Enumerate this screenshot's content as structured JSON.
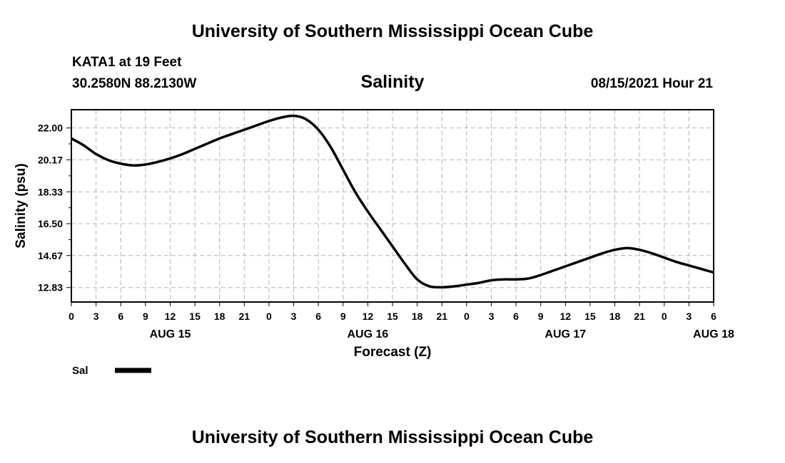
{
  "header": {
    "title": "University of Southern Mississippi Ocean Cube",
    "station": "KATA1 at 19 Feet",
    "coords": "30.2580N  88.2130W",
    "forecast_time": "08/15/2021 Hour 21"
  },
  "footer": {
    "title": "University of Southern Mississippi Ocean Cube"
  },
  "chart_data": {
    "type": "line",
    "title": "Salinity",
    "xlabel": "Forecast (Z)",
    "ylabel": "Salinity (psu)",
    "grid": true,
    "xlim": [
      0,
      78
    ],
    "ylim": [
      12.0,
      23.05
    ],
    "yticks": [
      12.83,
      14.67,
      16.5,
      18.33,
      20.17,
      22.0
    ],
    "ytick_labels": [
      "12.83",
      "14.67",
      "16.50",
      "18.33",
      "20.17",
      "22.00"
    ],
    "xticks": [
      0,
      3,
      6,
      9,
      12,
      15,
      18,
      21,
      24,
      27,
      30,
      33,
      36,
      39,
      42,
      45,
      48,
      51,
      54,
      57,
      60,
      63,
      66,
      69,
      72,
      75,
      78
    ],
    "xtick_labels": [
      "0",
      "3",
      "6",
      "9",
      "12",
      "15",
      "18",
      "21",
      "0",
      "3",
      "6",
      "9",
      "12",
      "15",
      "18",
      "21",
      "0",
      "3",
      "6",
      "9",
      "12",
      "15",
      "18",
      "21",
      "0",
      "3",
      "6"
    ],
    "day_labels": [
      {
        "hour": 12,
        "label": "AUG 15"
      },
      {
        "hour": 36,
        "label": "AUG 16"
      },
      {
        "hour": 60,
        "label": "AUG 17"
      },
      {
        "hour": 78,
        "label": "AUG 18"
      }
    ],
    "legend": [
      {
        "name": "Sal",
        "color": "#000000"
      }
    ],
    "legend_position": "bottom-left",
    "series": [
      {
        "name": "Sal",
        "color": "#000000",
        "x": [
          0,
          1.5,
          3,
          4.5,
          6,
          7.5,
          9,
          10.5,
          12,
          13.5,
          15,
          16.5,
          18,
          19.5,
          21,
          22.5,
          24,
          25.5,
          27,
          28.5,
          30,
          31.5,
          33,
          34.5,
          36,
          37.5,
          39,
          40.5,
          42,
          43.5,
          45,
          46.5,
          48,
          49.5,
          51,
          52.5,
          54,
          55.5,
          57,
          58.5,
          60,
          61.5,
          63,
          64.5,
          66,
          67.5,
          69,
          70.5,
          72,
          73.5,
          75,
          76.5,
          78
        ],
        "values": [
          21.4,
          21.0,
          20.5,
          20.15,
          19.95,
          19.85,
          19.9,
          20.05,
          20.25,
          20.5,
          20.8,
          21.1,
          21.4,
          21.65,
          21.9,
          22.15,
          22.4,
          22.6,
          22.7,
          22.5,
          21.9,
          20.9,
          19.6,
          18.3,
          17.2,
          16.2,
          15.2,
          14.2,
          13.3,
          12.9,
          12.85,
          12.9,
          13.0,
          13.1,
          13.25,
          13.3,
          13.3,
          13.35,
          13.55,
          13.8,
          14.05,
          14.3,
          14.55,
          14.8,
          15.0,
          15.1,
          15.0,
          14.8,
          14.55,
          14.3,
          14.1,
          13.9,
          13.7
        ]
      }
    ]
  }
}
